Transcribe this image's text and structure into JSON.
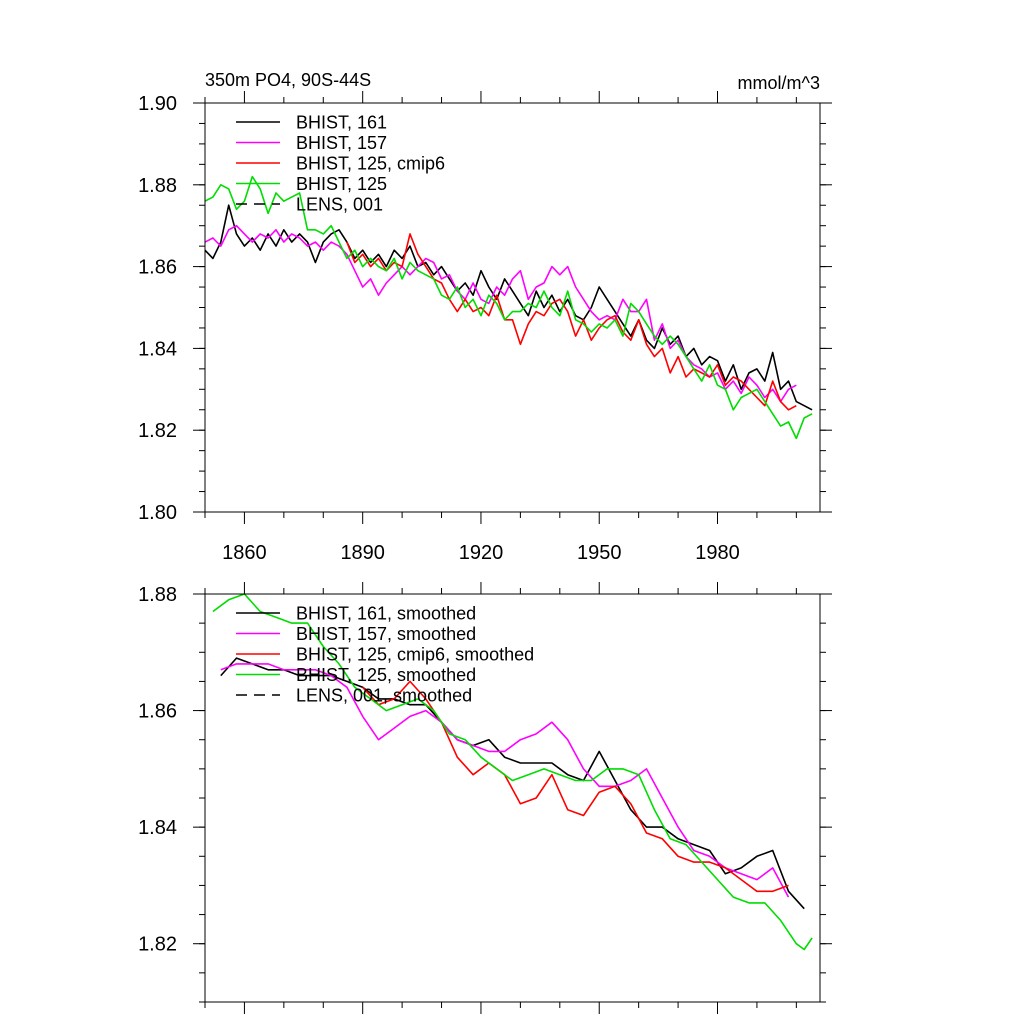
{
  "chart_data": [
    {
      "type": "line",
      "title": "350m PO4, 90S-44S",
      "units": "mmol/m^3",
      "xlim": [
        1850,
        2006
      ],
      "ylim": [
        1.8,
        1.9
      ],
      "xticks": [
        1860,
        1890,
        1920,
        1950,
        1980
      ],
      "xtick_labels": [
        "1860",
        "1890",
        "1920",
        "1950",
        "1980"
      ],
      "yticks": [
        1.8,
        1.82,
        1.84,
        1.86,
        1.88,
        1.9
      ],
      "ytick_labels": [
        "1.80",
        "1.82",
        "1.84",
        "1.86",
        "1.88",
        "1.90"
      ],
      "legend": [
        {
          "label": "BHIST, 161",
          "color": "#000000",
          "dash": "solid"
        },
        {
          "label": "BHIST, 157",
          "color": "#ff00ff",
          "dash": "solid"
        },
        {
          "label": "BHIST, 125, cmip6",
          "color": "#ff0000",
          "dash": "solid"
        },
        {
          "label": "BHIST, 125",
          "color": "#00dd00",
          "dash": "solid"
        },
        {
          "label": "LENS, 001",
          "color": "#000000",
          "dash": "dashed"
        }
      ],
      "series": [
        {
          "name": "BHIST, 161",
          "color": "#000000",
          "x": [
            1850,
            1852,
            1854,
            1856,
            1858,
            1860,
            1862,
            1864,
            1866,
            1868,
            1870,
            1872,
            1874,
            1876,
            1878,
            1880,
            1882,
            1884,
            1886,
            1888,
            1890,
            1892,
            1894,
            1896,
            1898,
            1900,
            1902,
            1904,
            1906,
            1908,
            1910,
            1912,
            1914,
            1916,
            1918,
            1920,
            1922,
            1924,
            1926,
            1928,
            1930,
            1932,
            1934,
            1936,
            1938,
            1940,
            1942,
            1944,
            1946,
            1948,
            1950,
            1952,
            1954,
            1956,
            1958,
            1960,
            1962,
            1964,
            1966,
            1968,
            1970,
            1972,
            1974,
            1976,
            1978,
            1980,
            1982,
            1984,
            1986,
            1988,
            1990,
            1992,
            1994,
            1996,
            1998,
            2000,
            2002,
            2004
          ],
          "y": [
            1.864,
            1.862,
            1.866,
            1.875,
            1.868,
            1.865,
            1.867,
            1.864,
            1.868,
            1.865,
            1.869,
            1.866,
            1.868,
            1.866,
            1.861,
            1.866,
            1.868,
            1.869,
            1.866,
            1.862,
            1.864,
            1.861,
            1.863,
            1.86,
            1.864,
            1.862,
            1.865,
            1.86,
            1.861,
            1.858,
            1.86,
            1.857,
            1.854,
            1.856,
            1.853,
            1.859,
            1.855,
            1.852,
            1.857,
            1.854,
            1.851,
            1.848,
            1.854,
            1.85,
            1.853,
            1.849,
            1.852,
            1.848,
            1.847,
            1.85,
            1.855,
            1.852,
            1.849,
            1.846,
            1.843,
            1.847,
            1.842,
            1.84,
            1.845,
            1.841,
            1.843,
            1.838,
            1.84,
            1.836,
            1.838,
            1.837,
            1.832,
            1.836,
            1.83,
            1.834,
            1.835,
            1.832,
            1.839,
            1.83,
            1.832,
            1.827,
            1.826,
            1.825
          ]
        },
        {
          "name": "BHIST, 157",
          "color": "#ff00ff",
          "x": [
            1850,
            1852,
            1854,
            1856,
            1858,
            1860,
            1862,
            1864,
            1866,
            1868,
            1870,
            1872,
            1874,
            1876,
            1878,
            1880,
            1882,
            1884,
            1886,
            1888,
            1890,
            1892,
            1894,
            1896,
            1898,
            1900,
            1902,
            1904,
            1906,
            1908,
            1910,
            1912,
            1914,
            1916,
            1918,
            1920,
            1922,
            1924,
            1926,
            1928,
            1930,
            1932,
            1934,
            1936,
            1938,
            1940,
            1942,
            1944,
            1946,
            1948,
            1950,
            1952,
            1954,
            1956,
            1958,
            1960,
            1962,
            1964,
            1966,
            1968,
            1970,
            1972,
            1974,
            1976,
            1978,
            1980,
            1982,
            1984,
            1986,
            1988,
            1990,
            1992,
            1994,
            1996,
            1998,
            2000
          ],
          "y": [
            1.866,
            1.867,
            1.865,
            1.869,
            1.87,
            1.868,
            1.866,
            1.868,
            1.867,
            1.869,
            1.866,
            1.868,
            1.867,
            1.865,
            1.866,
            1.864,
            1.866,
            1.865,
            1.863,
            1.859,
            1.855,
            1.857,
            1.853,
            1.856,
            1.858,
            1.86,
            1.858,
            1.86,
            1.862,
            1.861,
            1.857,
            1.858,
            1.854,
            1.852,
            1.856,
            1.852,
            1.851,
            1.855,
            1.853,
            1.857,
            1.859,
            1.852,
            1.855,
            1.856,
            1.86,
            1.858,
            1.86,
            1.855,
            1.852,
            1.849,
            1.847,
            1.848,
            1.847,
            1.852,
            1.849,
            1.849,
            1.852,
            1.842,
            1.846,
            1.84,
            1.842,
            1.838,
            1.836,
            1.835,
            1.833,
            1.834,
            1.83,
            1.832,
            1.829,
            1.833,
            1.831,
            1.828,
            1.83,
            1.827,
            1.83,
            1.831
          ]
        },
        {
          "name": "BHIST, 125, cmip6",
          "color": "#ff0000",
          "x": [
            1886,
            1888,
            1890,
            1892,
            1894,
            1896,
            1898,
            1900,
            1902,
            1904,
            1906,
            1908,
            1910,
            1912,
            1914,
            1916,
            1918,
            1920,
            1922,
            1924,
            1926,
            1928,
            1930,
            1932,
            1934,
            1936,
            1938,
            1940,
            1942,
            1944,
            1946,
            1948,
            1950,
            1952,
            1954,
            1956,
            1958,
            1960,
            1962,
            1964,
            1966,
            1968,
            1970,
            1972,
            1974,
            1976,
            1978,
            1980,
            1982,
            1984,
            1986,
            1988,
            1990,
            1992,
            1994,
            1996,
            1998,
            2000
          ],
          "y": [
            1.866,
            1.861,
            1.863,
            1.86,
            1.862,
            1.859,
            1.861,
            1.86,
            1.868,
            1.863,
            1.86,
            1.857,
            1.856,
            1.852,
            1.849,
            1.852,
            1.849,
            1.85,
            1.848,
            1.853,
            1.847,
            1.847,
            1.841,
            1.846,
            1.849,
            1.848,
            1.851,
            1.852,
            1.849,
            1.843,
            1.847,
            1.842,
            1.845,
            1.847,
            1.848,
            1.844,
            1.842,
            1.847,
            1.841,
            1.838,
            1.84,
            1.834,
            1.838,
            1.833,
            1.835,
            1.834,
            1.833,
            1.836,
            1.831,
            1.833,
            1.832,
            1.83,
            1.828,
            1.826,
            1.832,
            1.827,
            1.825,
            1.826
          ]
        },
        {
          "name": "BHIST, 125",
          "color": "#00dd00",
          "x": [
            1850,
            1852,
            1854,
            1856,
            1858,
            1860,
            1862,
            1864,
            1866,
            1868,
            1870,
            1872,
            1874,
            1876,
            1878,
            1880,
            1882,
            1884,
            1886,
            1888,
            1890,
            1892,
            1894,
            1896,
            1898,
            1900,
            1902,
            1904,
            1906,
            1908,
            1910,
            1912,
            1914,
            1916,
            1918,
            1920,
            1922,
            1924,
            1926,
            1928,
            1930,
            1932,
            1934,
            1936,
            1938,
            1940,
            1942,
            1944,
            1946,
            1948,
            1950,
            1952,
            1954,
            1956,
            1958,
            1960,
            1962,
            1964,
            1966,
            1968,
            1970,
            1972,
            1974,
            1976,
            1978,
            1980,
            1982,
            1984,
            1986,
            1988,
            1990,
            1992,
            1994,
            1996,
            1998,
            2000,
            2002,
            2004
          ],
          "y": [
            1.876,
            1.877,
            1.88,
            1.879,
            1.874,
            1.876,
            1.882,
            1.879,
            1.873,
            1.878,
            1.876,
            1.877,
            1.878,
            1.869,
            1.869,
            1.868,
            1.87,
            1.866,
            1.862,
            1.864,
            1.86,
            1.862,
            1.86,
            1.859,
            1.862,
            1.857,
            1.861,
            1.859,
            1.858,
            1.857,
            1.853,
            1.852,
            1.855,
            1.85,
            1.852,
            1.848,
            1.853,
            1.851,
            1.847,
            1.849,
            1.849,
            1.851,
            1.85,
            1.854,
            1.85,
            1.848,
            1.854,
            1.847,
            1.846,
            1.844,
            1.846,
            1.845,
            1.847,
            1.843,
            1.851,
            1.849,
            1.846,
            1.843,
            1.841,
            1.843,
            1.841,
            1.838,
            1.835,
            1.832,
            1.836,
            1.831,
            1.83,
            1.825,
            1.828,
            1.829,
            1.83,
            1.827,
            1.824,
            1.821,
            1.822,
            1.818,
            1.823,
            1.824
          ]
        }
      ]
    },
    {
      "type": "line",
      "xlim": [
        1850,
        2006
      ],
      "ylim": [
        1.81,
        1.88
      ],
      "xticks": [
        1860,
        1890,
        1920,
        1950,
        1980
      ],
      "yticks": [
        1.82,
        1.84,
        1.86,
        1.88
      ],
      "ytick_labels": [
        "1.82",
        "1.84",
        "1.86",
        "1.88"
      ],
      "legend": [
        {
          "label": "BHIST, 161, smoothed",
          "color": "#000000",
          "dash": "solid"
        },
        {
          "label": "BHIST, 157, smoothed",
          "color": "#ff00ff",
          "dash": "solid"
        },
        {
          "label": "BHIST, 125, cmip6, smoothed",
          "color": "#ff0000",
          "dash": "solid"
        },
        {
          "label": "BHIST, 125, smoothed",
          "color": "#00dd00",
          "dash": "solid"
        },
        {
          "label": "LENS, 001, smoothed",
          "color": "#000000",
          "dash": "dashed"
        }
      ],
      "series": [
        {
          "name": "BHIST, 161, smoothed",
          "color": "#000000",
          "x": [
            1854,
            1858,
            1862,
            1866,
            1870,
            1874,
            1878,
            1882,
            1886,
            1890,
            1894,
            1898,
            1902,
            1906,
            1910,
            1914,
            1918,
            1922,
            1926,
            1930,
            1934,
            1938,
            1942,
            1946,
            1950,
            1954,
            1958,
            1962,
            1966,
            1970,
            1974,
            1978,
            1982,
            1986,
            1990,
            1994,
            1998,
            2002
          ],
          "y": [
            1.866,
            1.869,
            1.868,
            1.867,
            1.867,
            1.866,
            1.866,
            1.866,
            1.865,
            1.864,
            1.862,
            1.862,
            1.861,
            1.861,
            1.858,
            1.855,
            1.854,
            1.855,
            1.852,
            1.851,
            1.851,
            1.851,
            1.849,
            1.848,
            1.853,
            1.848,
            1.843,
            1.84,
            1.84,
            1.838,
            1.837,
            1.836,
            1.832,
            1.833,
            1.835,
            1.836,
            1.829,
            1.826
          ]
        },
        {
          "name": "BHIST, 157, smoothed",
          "color": "#ff00ff",
          "x": [
            1854,
            1858,
            1862,
            1866,
            1870,
            1874,
            1878,
            1882,
            1886,
            1890,
            1894,
            1898,
            1902,
            1906,
            1910,
            1914,
            1918,
            1922,
            1926,
            1930,
            1934,
            1938,
            1942,
            1946,
            1950,
            1954,
            1958,
            1962,
            1966,
            1970,
            1974,
            1978,
            1982,
            1986,
            1990,
            1994,
            1998
          ],
          "y": [
            1.867,
            1.868,
            1.868,
            1.868,
            1.867,
            1.867,
            1.867,
            1.866,
            1.864,
            1.859,
            1.855,
            1.857,
            1.859,
            1.86,
            1.858,
            1.855,
            1.854,
            1.853,
            1.853,
            1.855,
            1.856,
            1.858,
            1.855,
            1.85,
            1.847,
            1.847,
            1.848,
            1.85,
            1.845,
            1.84,
            1.836,
            1.835,
            1.833,
            1.832,
            1.831,
            1.833,
            1.828
          ]
        },
        {
          "name": "BHIST, 125, cmip6, smoothed",
          "color": "#ff0000",
          "x": [
            1890,
            1894,
            1898,
            1902,
            1906,
            1910,
            1914,
            1918,
            1922,
            1926,
            1930,
            1934,
            1938,
            1942,
            1946,
            1950,
            1954,
            1958,
            1962,
            1966,
            1970,
            1974,
            1978,
            1982,
            1986,
            1990,
            1994,
            1998
          ],
          "y": [
            1.864,
            1.861,
            1.862,
            1.865,
            1.862,
            1.858,
            1.852,
            1.849,
            1.851,
            1.849,
            1.844,
            1.845,
            1.849,
            1.843,
            1.842,
            1.846,
            1.847,
            1.844,
            1.839,
            1.838,
            1.835,
            1.834,
            1.834,
            1.833,
            1.831,
            1.829,
            1.829,
            1.83
          ]
        },
        {
          "name": "BHIST, 125, smoothed",
          "color": "#00dd00",
          "x": [
            1852,
            1856,
            1860,
            1864,
            1868,
            1872,
            1876,
            1880,
            1884,
            1888,
            1892,
            1896,
            1900,
            1904,
            1908,
            1912,
            1916,
            1920,
            1924,
            1928,
            1932,
            1936,
            1940,
            1944,
            1948,
            1952,
            1956,
            1960,
            1964,
            1968,
            1972,
            1976,
            1980,
            1984,
            1988,
            1992,
            1996,
            2000,
            2002,
            2004
          ],
          "y": [
            1.877,
            1.879,
            1.88,
            1.877,
            1.876,
            1.875,
            1.875,
            1.871,
            1.868,
            1.864,
            1.862,
            1.86,
            1.861,
            1.862,
            1.86,
            1.856,
            1.855,
            1.852,
            1.85,
            1.848,
            1.849,
            1.85,
            1.849,
            1.848,
            1.848,
            1.85,
            1.85,
            1.849,
            1.843,
            1.838,
            1.837,
            1.834,
            1.831,
            1.828,
            1.827,
            1.827,
            1.824,
            1.82,
            1.819,
            1.821
          ]
        }
      ]
    }
  ]
}
